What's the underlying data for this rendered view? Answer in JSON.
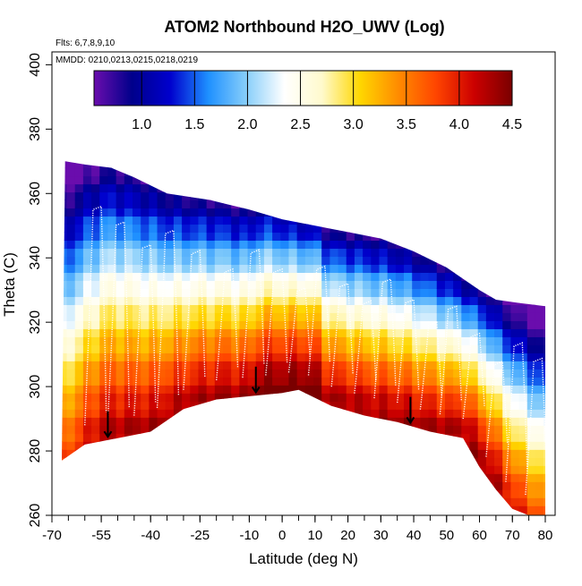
{
  "chart_data": {
    "type": "heatmap",
    "title": "ATOM2 Northbound H2O_UWV (Log)",
    "annotations": [
      "Flts: 6,7,8,9,10",
      "MMDD: 0210,0213,0215,0218,0219"
    ],
    "xlabel": "Latitude (deg N)",
    "ylabel": "Theta (C)",
    "xlim": [
      -70,
      83
    ],
    "ylim": [
      260,
      404
    ],
    "x_ticks": [
      "-70",
      "-55",
      "-40",
      "-25",
      "-10",
      "0",
      "10",
      "20",
      "30",
      "40",
      "50",
      "60",
      "70",
      "80"
    ],
    "x_tick_values": [
      -70,
      -55,
      -40,
      -25,
      -10,
      0,
      10,
      20,
      30,
      40,
      50,
      60,
      70,
      80
    ],
    "y_ticks": [
      "260",
      "280",
      "300",
      "320",
      "340",
      "360",
      "380",
      "400"
    ],
    "y_tick_values": [
      260,
      280,
      300,
      320,
      340,
      360,
      380,
      400
    ],
    "colorbar": {
      "min": 0.55,
      "max": 4.5,
      "ticks": [
        "1.0",
        "1.5",
        "2.0",
        "2.5",
        "3.0",
        "3.5",
        "4.0",
        "4.5"
      ],
      "tick_values": [
        1.0,
        1.5,
        2.0,
        2.5,
        3.0,
        3.5,
        4.0,
        4.5
      ],
      "placement": "top-inside",
      "colors": [
        "#6a0dad",
        "#00008b",
        "#0000cd",
        "#1e90ff",
        "#87cefa",
        "#ffffff",
        "#fffacd",
        "#ffd700",
        "#ff8c00",
        "#ff4500",
        "#cc0000",
        "#7a0000"
      ]
    },
    "coverage": {
      "upper_boundary": [
        [
          -66,
          370
        ],
        [
          -60,
          369
        ],
        [
          -52,
          368
        ],
        [
          -45,
          365
        ],
        [
          -35,
          360
        ],
        [
          -22,
          358
        ],
        [
          -10,
          355
        ],
        [
          0,
          352
        ],
        [
          10,
          350
        ],
        [
          20,
          348
        ],
        [
          30,
          346
        ],
        [
          40,
          342
        ],
        [
          50,
          337
        ],
        [
          60,
          330
        ],
        [
          65,
          327
        ],
        [
          72,
          326
        ],
        [
          80,
          325
        ]
      ],
      "lower_boundary": [
        [
          -67,
          277
        ],
        [
          -60,
          282
        ],
        [
          -50,
          284
        ],
        [
          -40,
          286
        ],
        [
          -30,
          293
        ],
        [
          -20,
          296
        ],
        [
          -10,
          297
        ],
        [
          0,
          298
        ],
        [
          5,
          299
        ],
        [
          15,
          294
        ],
        [
          25,
          291
        ],
        [
          35,
          289
        ],
        [
          45,
          286
        ],
        [
          50,
          285
        ],
        [
          55,
          284
        ],
        [
          60,
          275
        ],
        [
          65,
          268
        ],
        [
          70,
          262
        ],
        [
          75,
          260
        ],
        [
          80,
          260
        ]
      ]
    },
    "arrows_latitudes": [
      -53,
      -8,
      39
    ],
    "grid": false,
    "legend": "none"
  }
}
